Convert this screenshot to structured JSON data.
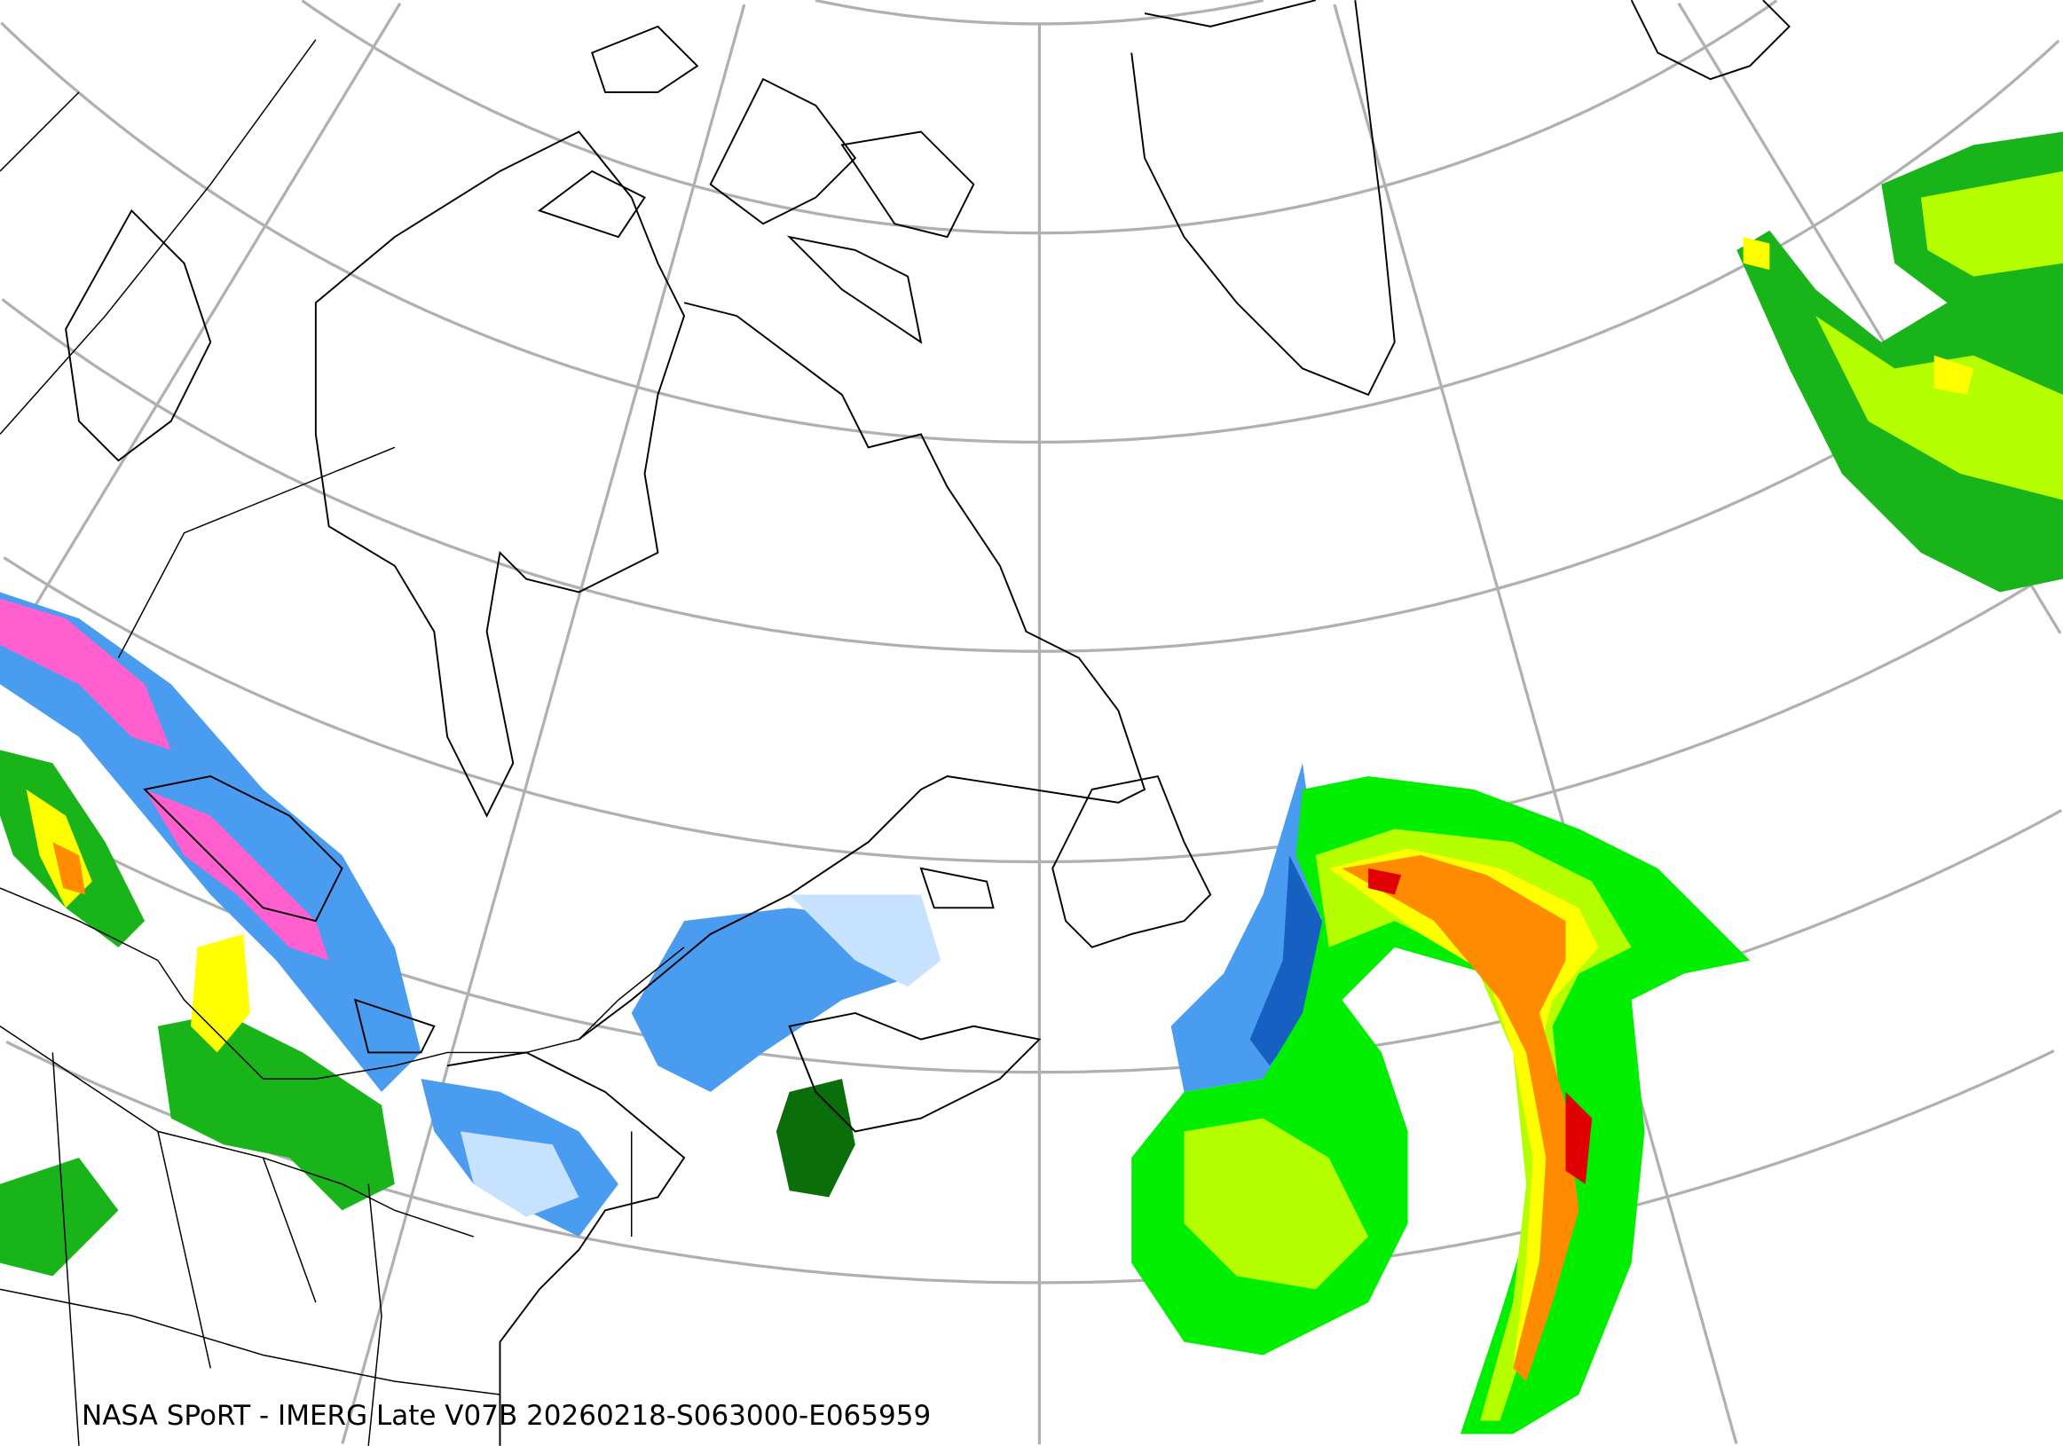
{
  "map": {
    "caption": "NASA SPoRT - IMERG Late V07B 20260218-S063000-E065959",
    "projection": "polar-conic",
    "graticule_color": "#b0b0b0",
    "coastline_color": "#000000",
    "precip_colors": {
      "light_snow": "#c6e2ff",
      "snow": "#4a9cf0",
      "heavy_snow": "#1560c0",
      "very_heavy_snow": "#ff5fcf",
      "light_rain": "#0a6e0a",
      "rain": "#19b419",
      "moderate_rain": "#00ee00",
      "heavy_rain": "#b5ff00",
      "very_heavy_rain": "#ffff00",
      "intense_rain": "#ff8c00",
      "extreme_rain": "#e00000"
    }
  }
}
